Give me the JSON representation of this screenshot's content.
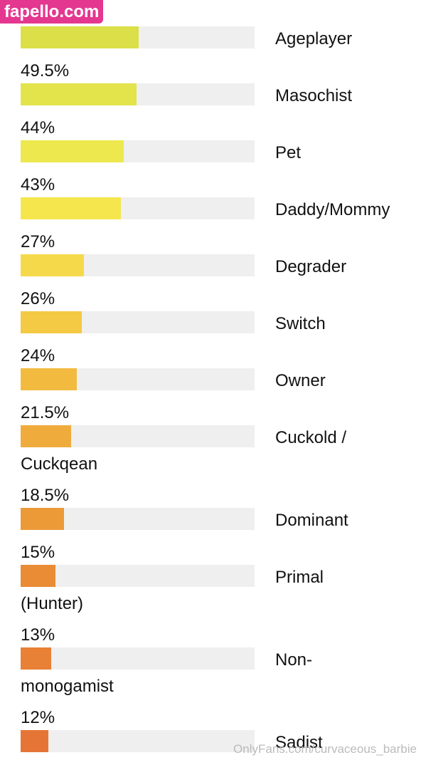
{
  "site_badge": "fapello.com",
  "watermark": "OnlyFans.com/curvaceous_barbie",
  "rows": [
    {
      "percent": "",
      "value": 50.5,
      "color": "#dcdf48",
      "label": "Ageplayer",
      "continuation": ""
    },
    {
      "percent": "49.5%",
      "value": 49.5,
      "color": "#e3e34c",
      "label": "Masochist",
      "continuation": ""
    },
    {
      "percent": "44%",
      "value": 44,
      "color": "#ece84e",
      "label": "Pet",
      "continuation": ""
    },
    {
      "percent": "43%",
      "value": 43,
      "color": "#f5e64e",
      "label": "Daddy/Mommy",
      "continuation": ""
    },
    {
      "percent": "27%",
      "value": 27,
      "color": "#f6d94b",
      "label": "Degrader",
      "continuation": ""
    },
    {
      "percent": "26%",
      "value": 26,
      "color": "#f4c943",
      "label": "Switch",
      "continuation": ""
    },
    {
      "percent": "24%",
      "value": 24,
      "color": "#f2bb40",
      "label": "Owner",
      "continuation": ""
    },
    {
      "percent": "21.5%",
      "value": 21.5,
      "color": "#efac3d",
      "label": "Cuckold /",
      "continuation": "Cuckqean"
    },
    {
      "percent": "18.5%",
      "value": 18.5,
      "color": "#ec9a38",
      "label": "Dominant",
      "continuation": ""
    },
    {
      "percent": "15%",
      "value": 15,
      "color": "#ea8c35",
      "label": "Primal",
      "continuation": "(Hunter)"
    },
    {
      "percent": "13%",
      "value": 13,
      "color": "#e88035",
      "label": "Non-",
      "continuation": "monogamist"
    },
    {
      "percent": "12%",
      "value": 12,
      "color": "#e57536",
      "label": "Sadist",
      "continuation": ""
    }
  ]
}
